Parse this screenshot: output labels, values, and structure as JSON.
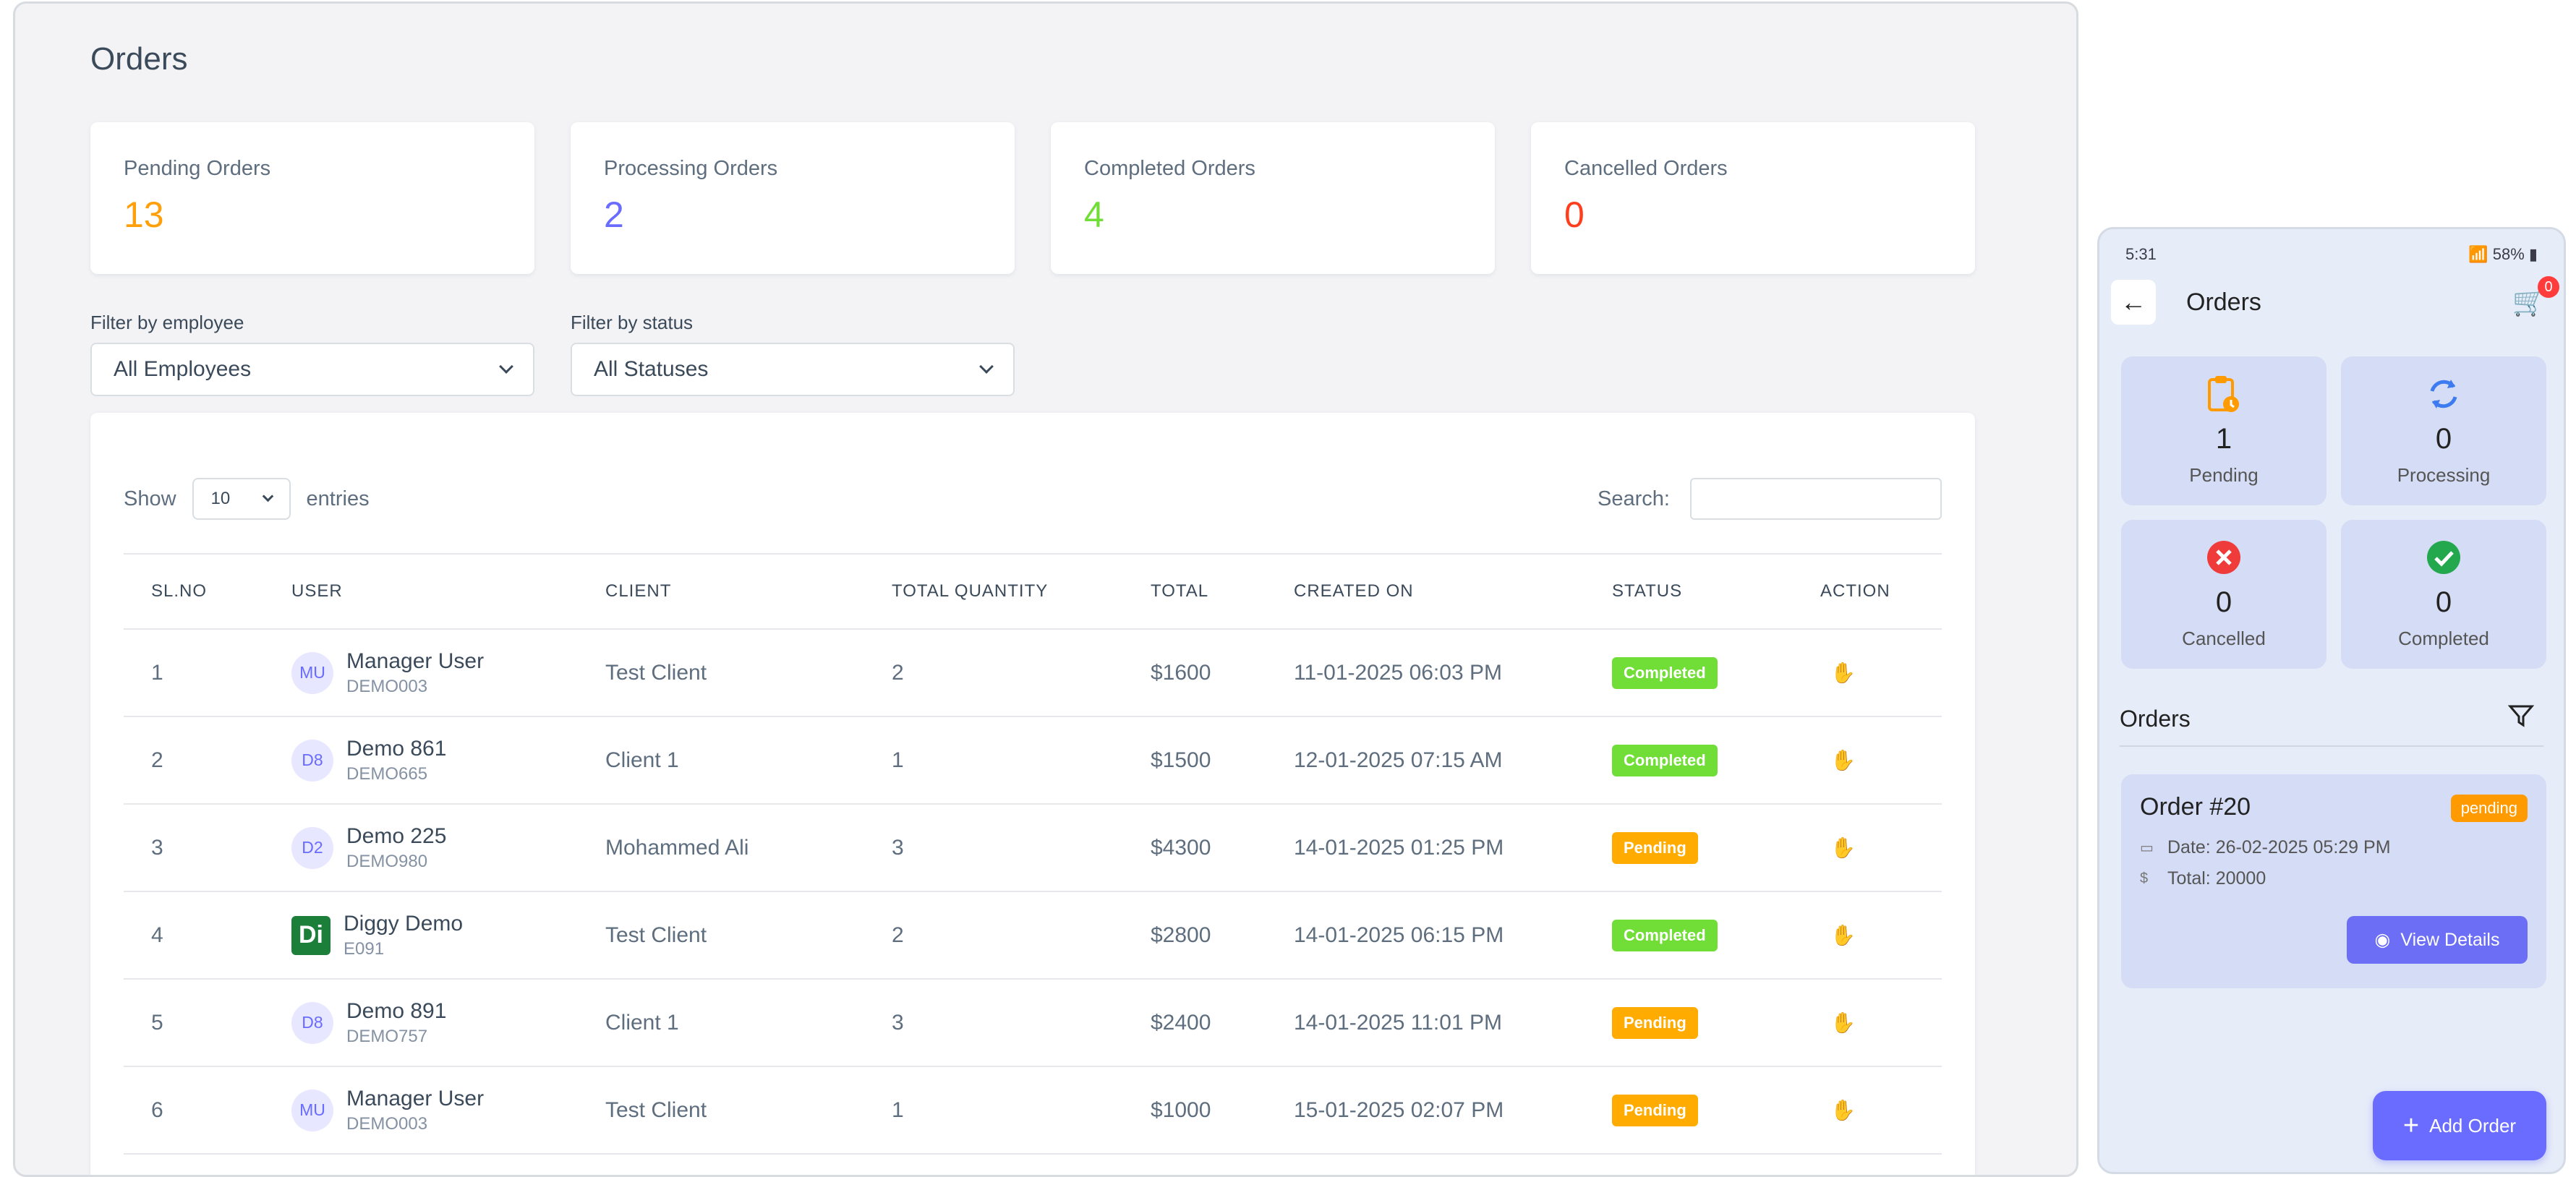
{
  "desktop": {
    "title": "Orders",
    "stats": [
      {
        "label": "Pending Orders",
        "value": "13",
        "color": "#ff9f0a"
      },
      {
        "label": "Processing Orders",
        "value": "2",
        "color": "#696cff"
      },
      {
        "label": "Completed Orders",
        "value": "4",
        "color": "#71dd37"
      },
      {
        "label": "Cancelled Orders",
        "value": "0",
        "color": "#ff3e1d"
      }
    ],
    "filters": {
      "employee_label": "Filter by employee",
      "employee_value": "All Employees",
      "status_label": "Filter by status",
      "status_value": "All Statuses"
    },
    "table": {
      "show_label": "Show",
      "page_length": "10",
      "entries_label": "entries",
      "search_label": "Search:",
      "columns": [
        "SL.NO",
        "USER",
        "CLIENT",
        "TOTAL QUANTITY",
        "TOTAL",
        "CREATED ON",
        "STATUS",
        "ACTION"
      ],
      "rows": [
        {
          "sl": "1",
          "avatar": "MU",
          "avatar_style": "initials",
          "name": "Manager User",
          "code": "DEMO003",
          "client": "Test Client",
          "qty": "2",
          "total": "$1600",
          "created": "11-01-2025 06:03 PM",
          "status": "Completed"
        },
        {
          "sl": "2",
          "avatar": "D8",
          "avatar_style": "initials",
          "name": "Demo 861",
          "code": "DEMO665",
          "client": "Client 1",
          "qty": "1",
          "total": "$1500",
          "created": "12-01-2025 07:15 AM",
          "status": "Completed"
        },
        {
          "sl": "3",
          "avatar": "D2",
          "avatar_style": "initials",
          "name": "Demo 225",
          "code": "DEMO980",
          "client": "Mohammed Ali",
          "qty": "3",
          "total": "$4300",
          "created": "14-01-2025 01:25 PM",
          "status": "Pending"
        },
        {
          "sl": "4",
          "avatar": "Di",
          "avatar_style": "logo",
          "name": "Diggy Demo",
          "code": "E091",
          "client": "Test Client",
          "qty": "2",
          "total": "$2800",
          "created": "14-01-2025 06:15 PM",
          "status": "Completed"
        },
        {
          "sl": "5",
          "avatar": "D8",
          "avatar_style": "initials",
          "name": "Demo 891",
          "code": "DEMO757",
          "client": "Client 1",
          "qty": "3",
          "total": "$2400",
          "created": "14-01-2025 11:01 PM",
          "status": "Pending"
        },
        {
          "sl": "6",
          "avatar": "MU",
          "avatar_style": "initials",
          "name": "Manager User",
          "code": "DEMO003",
          "client": "Test Client",
          "qty": "1",
          "total": "$1000",
          "created": "15-01-2025 02:07 PM",
          "status": "Pending"
        }
      ],
      "status_colors": {
        "Completed": "#71dd37",
        "Pending": "#ffab00"
      },
      "action_icon": "hand-icon"
    }
  },
  "mobile": {
    "status_bar": {
      "time": "5:31",
      "battery": "58%"
    },
    "title": "Orders",
    "cart_count": "0",
    "cards": [
      {
        "value": "1",
        "label": "Pending",
        "icon": "clipboard-clock-icon",
        "color": "#ff9a00"
      },
      {
        "value": "0",
        "label": "Processing",
        "icon": "refresh-icon",
        "color": "#3d7cf0"
      },
      {
        "value": "0",
        "label": "Cancelled",
        "icon": "cancel-circle-icon",
        "color": "#f03b3b"
      },
      {
        "value": "0",
        "label": "Completed",
        "icon": "check-circle-icon",
        "color": "#23a84e"
      }
    ],
    "section_title": "Orders",
    "order": {
      "title": "Order #20",
      "status": "pending",
      "date": "Date: 26-02-2025 05:29 PM",
      "total": "Total: 20000",
      "view_label": "View Details"
    },
    "add_label": "Add Order"
  }
}
